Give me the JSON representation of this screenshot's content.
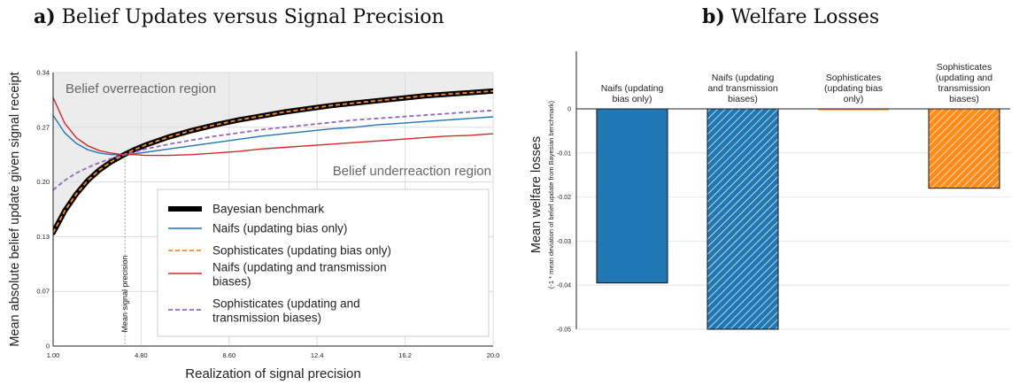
{
  "panel_a": {
    "letter": "a)",
    "title": "Belief Updates versus Signal Precision"
  },
  "panel_b": {
    "letter": "b)",
    "title": "Welfare Losses"
  },
  "chart_data": [
    {
      "type": "line",
      "xlabel": "Realization of signal precision",
      "ylabel": "Mean absolute belief update given signal receipt",
      "xlim": [
        1.0,
        20.0
      ],
      "ylim": [
        0,
        0.34
      ],
      "x_ticks": [
        "1.00",
        "4.80",
        "8.60",
        "12.4",
        "16.2",
        "20.0"
      ],
      "y_ticks": [
        "0",
        "0.07",
        "0.13",
        "0.20",
        "0.27",
        "0.34"
      ],
      "grid": true,
      "legend_position": "bottom-right",
      "annotations": {
        "overreaction": "Belief overreaction region",
        "underreaction": "Belief underreaction region",
        "mean_precision": "Mean signal precision",
        "mean_precision_x": 4.1
      },
      "x": [
        1,
        1.5,
        2,
        2.5,
        3,
        3.5,
        4,
        4.5,
        5,
        6,
        7,
        8,
        9,
        10,
        11,
        12,
        13,
        14,
        15,
        16,
        17,
        18,
        19,
        20
      ],
      "series": [
        {
          "name": "Bayesian benchmark",
          "color": "#000000",
          "style": "thick",
          "values": [
            0.141,
            0.168,
            0.189,
            0.206,
            0.219,
            0.229,
            0.237,
            0.244,
            0.25,
            0.26,
            0.268,
            0.275,
            0.281,
            0.286,
            0.291,
            0.295,
            0.299,
            0.302,
            0.305,
            0.308,
            0.311,
            0.313,
            0.315,
            0.317
          ]
        },
        {
          "name": "Naifs (updating bias only)",
          "color": "#1f77b4",
          "style": "solid",
          "values": [
            0.287,
            0.265,
            0.252,
            0.244,
            0.24,
            0.238,
            0.238,
            0.239,
            0.241,
            0.245,
            0.249,
            0.253,
            0.257,
            0.261,
            0.264,
            0.267,
            0.27,
            0.272,
            0.275,
            0.277,
            0.279,
            0.281,
            0.283,
            0.285
          ]
        },
        {
          "name": "Sophisticates (updating bias only)",
          "color": "#ff8c1a",
          "style": "dashed",
          "values": [
            0.141,
            0.168,
            0.189,
            0.206,
            0.219,
            0.229,
            0.237,
            0.244,
            0.25,
            0.26,
            0.268,
            0.275,
            0.281,
            0.286,
            0.291,
            0.295,
            0.299,
            0.302,
            0.305,
            0.308,
            0.311,
            0.313,
            0.315,
            0.317
          ]
        },
        {
          "name": "Naifs (updating and transmission biases)",
          "color": "#d62728",
          "style": "solid",
          "values": [
            0.309,
            0.277,
            0.259,
            0.249,
            0.243,
            0.24,
            0.238,
            0.238,
            0.237,
            0.237,
            0.238,
            0.24,
            0.242,
            0.245,
            0.247,
            0.249,
            0.251,
            0.253,
            0.255,
            0.257,
            0.259,
            0.261,
            0.262,
            0.264
          ]
        },
        {
          "name": "Sophisticates (updating and transmission biases)",
          "color": "#9467bd",
          "style": "dashed",
          "values": [
            0.194,
            0.206,
            0.215,
            0.222,
            0.228,
            0.233,
            0.237,
            0.241,
            0.245,
            0.251,
            0.256,
            0.261,
            0.265,
            0.269,
            0.272,
            0.275,
            0.278,
            0.281,
            0.283,
            0.285,
            0.287,
            0.289,
            0.291,
            0.293
          ]
        }
      ]
    },
    {
      "type": "bar",
      "ylabel": "Mean welfare losses",
      "ylabel_sub": "(-1 * mean deviation of belief update from Bayesian benchmark)",
      "ylim": [
        -0.05,
        0
      ],
      "y_ticks": [
        "0",
        "-0.01",
        "-0.02",
        "-0.03",
        "-0.04",
        "-0.05"
      ],
      "grid": true,
      "categories": [
        [
          "Naifs (updating",
          "bias only)"
        ],
        [
          "Naifs (updating",
          "and transmission",
          "biases)"
        ],
        [
          "Sophisticates",
          "(updating bias",
          "only)"
        ],
        [
          "Sophisticates",
          "(updating and",
          "transmission",
          "biases)"
        ]
      ],
      "values": [
        -0.0395,
        -0.05,
        -0.0001,
        -0.018
      ],
      "colors": [
        "#1f77b4",
        "#1f77b4",
        "#ff8c1a",
        "#ff8c1a"
      ],
      "hatched": [
        false,
        true,
        false,
        true
      ]
    }
  ]
}
